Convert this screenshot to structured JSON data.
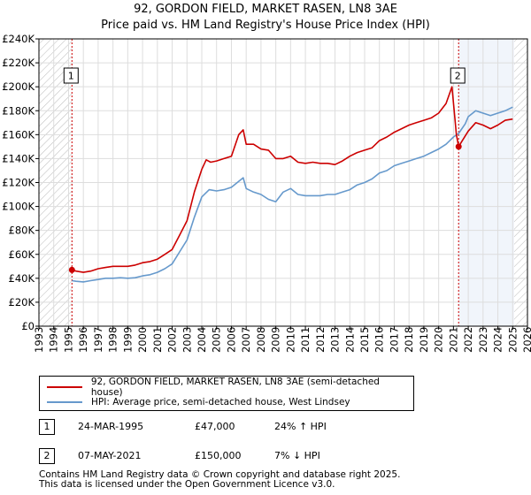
{
  "header": {
    "title_line1": "92, GORDON FIELD, MARKET RASEN, LN8 3AE",
    "title_line2": "Price paid vs. HM Land Registry's House Price Index (HPI)"
  },
  "chart_data": {
    "type": "line",
    "xlim": [
      1993,
      2026
    ],
    "ylim": [
      0,
      240000
    ],
    "y_ticks": [
      0,
      20000,
      40000,
      60000,
      80000,
      100000,
      120000,
      140000,
      160000,
      180000,
      200000,
      220000,
      240000
    ],
    "y_tick_labels": [
      "£0",
      "£20K",
      "£40K",
      "£60K",
      "£80K",
      "£100K",
      "£120K",
      "£140K",
      "£160K",
      "£180K",
      "£200K",
      "£220K",
      "£240K"
    ],
    "x_ticks": [
      1993,
      1994,
      1995,
      1996,
      1997,
      1998,
      1999,
      2000,
      2001,
      2002,
      2003,
      2004,
      2005,
      2006,
      2007,
      2008,
      2009,
      2010,
      2011,
      2012,
      2013,
      2014,
      2015,
      2016,
      2017,
      2018,
      2019,
      2020,
      2021,
      2022,
      2023,
      2024,
      2025,
      2026
    ],
    "x_tick_labels": [
      "1993",
      "1994",
      "1995",
      "1996",
      "1997",
      "1998",
      "1999",
      "2000",
      "2001",
      "2002",
      "2003",
      "2004",
      "2005",
      "2006",
      "2007",
      "2008",
      "2009",
      "2010",
      "2011",
      "2012",
      "2013",
      "2014",
      "2015",
      "2016",
      "2017",
      "2018",
      "2019",
      "2020",
      "2021",
      "2022",
      "2023",
      "2024",
      "2025",
      "2026"
    ],
    "grid": true,
    "hatched_regions": [
      [
        1993,
        1995.23
      ],
      [
        2025.1,
        2026
      ]
    ],
    "colors": {
      "property": "#cc0000",
      "hpi": "#6699cc",
      "hatch": "#bbbbbb",
      "vline": "#cc0000",
      "grid": "#dddddd",
      "shade": "#e8eef8"
    },
    "series": [
      {
        "name": "92, GORDON FIELD, MARKET RASEN, LN8 3AE (semi-detached house)",
        "color": "#cc0000",
        "x": [
          1995.23,
          1995.5,
          1996,
          1996.5,
          1997,
          1997.5,
          1998,
          1998.5,
          1999,
          1999.5,
          2000,
          2000.5,
          2001,
          2001.5,
          2002,
          2002.5,
          2003,
          2003.5,
          2004,
          2004.3,
          2004.6,
          2005,
          2005.5,
          2006,
          2006.5,
          2006.8,
          2007,
          2007.5,
          2008,
          2008.5,
          2009,
          2009.5,
          2010,
          2010.5,
          2011,
          2011.5,
          2012,
          2012.5,
          2013,
          2013.5,
          2014,
          2014.5,
          2015,
          2015.5,
          2016,
          2016.5,
          2017,
          2017.5,
          2018,
          2018.5,
          2019,
          2019.5,
          2020,
          2020.5,
          2020.9,
          2021.2,
          2021.35,
          2021.5,
          2022,
          2022.5,
          2023,
          2023.5,
          2024,
          2024.5,
          2025
        ],
        "y": [
          47000,
          46000,
          45000,
          46000,
          48000,
          49000,
          50000,
          50000,
          50000,
          51000,
          53000,
          54000,
          56000,
          60000,
          64000,
          76000,
          88000,
          112000,
          131000,
          139000,
          137000,
          138000,
          140000,
          142000,
          160000,
          164000,
          152000,
          152000,
          148000,
          147000,
          140000,
          140000,
          142000,
          137000,
          136000,
          137000,
          136000,
          136000,
          135000,
          138000,
          142000,
          145000,
          147000,
          149000,
          155000,
          158000,
          162000,
          165000,
          168000,
          170000,
          172000,
          174000,
          178000,
          186000,
          200000,
          160000,
          150000,
          153000,
          163000,
          170000,
          168000,
          165000,
          168000,
          172000,
          173000
        ]
      },
      {
        "name": "HPI: Average price, semi-detached house, West Lindsey",
        "color": "#6699cc",
        "x": [
          1995.23,
          1995.5,
          1996,
          1996.5,
          1997,
          1997.5,
          1998,
          1998.5,
          1999,
          1999.5,
          2000,
          2000.5,
          2001,
          2001.5,
          2002,
          2002.5,
          2003,
          2003.5,
          2004,
          2004.5,
          2005,
          2005.5,
          2006,
          2006.5,
          2006.8,
          2007,
          2007.5,
          2008,
          2008.5,
          2009,
          2009.5,
          2010,
          2010.5,
          2011,
          2011.5,
          2012,
          2012.5,
          2013,
          2013.5,
          2014,
          2014.5,
          2015,
          2015.5,
          2016,
          2016.5,
          2017,
          2017.5,
          2018,
          2018.5,
          2019,
          2019.5,
          2020,
          2020.5,
          2021,
          2021.35,
          2021.8,
          2022,
          2022.5,
          2023,
          2023.5,
          2024,
          2024.5,
          2025
        ],
        "y": [
          38000,
          37500,
          37000,
          38000,
          39000,
          40000,
          40000,
          40500,
          40000,
          40500,
          42000,
          43000,
          45000,
          48000,
          52000,
          62000,
          72000,
          91000,
          108000,
          114000,
          113000,
          114000,
          116000,
          121000,
          124000,
          115000,
          112000,
          110000,
          106000,
          104000,
          112000,
          115000,
          110000,
          109000,
          109000,
          109000,
          110000,
          110000,
          112000,
          114000,
          118000,
          120000,
          123000,
          128000,
          130000,
          134000,
          136000,
          138000,
          140000,
          142000,
          145000,
          148000,
          152000,
          158000,
          161000,
          169000,
          175000,
          180000,
          178000,
          176000,
          178000,
          180000,
          183000
        ]
      }
    ],
    "annotations": [
      {
        "label": "1",
        "x": 1995.23,
        "y": 47000
      },
      {
        "label": "2",
        "x": 2021.35,
        "y": 150000
      }
    ]
  },
  "legend": {
    "property_label": "92, GORDON FIELD, MARKET RASEN, LN8 3AE (semi-detached house)",
    "hpi_label": "HPI: Average price, semi-detached house, West Lindsey"
  },
  "transactions": [
    {
      "marker": "1",
      "date": "24-MAR-1995",
      "price": "£47,000",
      "hpi": "24% ↑ HPI"
    },
    {
      "marker": "2",
      "date": "07-MAY-2021",
      "price": "£150,000",
      "hpi": "7% ↓ HPI"
    }
  ],
  "footer": {
    "line1": "Contains HM Land Registry data © Crown copyright and database right 2025.",
    "line2": "This data is licensed under the Open Government Licence v3.0."
  }
}
